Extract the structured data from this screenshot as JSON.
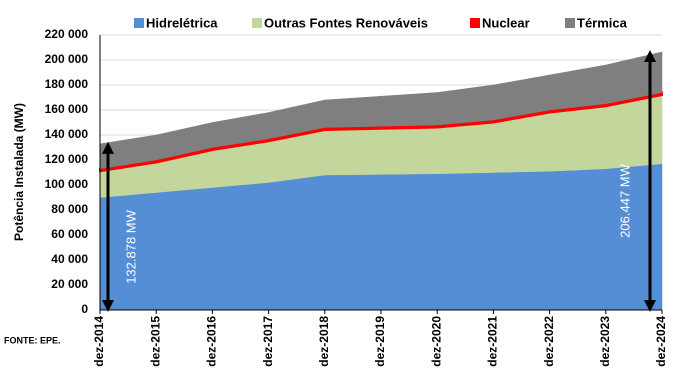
{
  "chart_data": {
    "type": "stacked-area",
    "y_label": "Potência Instalada (MW)",
    "source": "FONTE:  EPE.",
    "categories": [
      "dez-2014",
      "dez-2015",
      "dez-2016",
      "dez-2017",
      "dez-2018",
      "dez-2019",
      "dez-2020",
      "dez-2021",
      "dez-2022",
      "dez-2023",
      "dez-2024"
    ],
    "series": [
      {
        "name": "Hidrelétrica",
        "color": "#558ed5",
        "values": [
          90000,
          94000,
          98000,
          102000,
          108000,
          108500,
          109000,
          110000,
          111000,
          113000,
          117000
        ]
      },
      {
        "name": "Outras Fontes Renováveis",
        "color": "#c3d69b",
        "values": [
          21000,
          24000,
          30000,
          33000,
          36000,
          36500,
          37000,
          40000,
          47000,
          50000,
          55000
        ]
      },
      {
        "name": "Nuclear",
        "color": "#ff0000",
        "values": [
          1990,
          1990,
          1990,
          1990,
          1990,
          1990,
          1990,
          1990,
          1990,
          1990,
          1990
        ]
      },
      {
        "name": "Térmica",
        "color": "#7f7f7f",
        "values": [
          19888,
          20010,
          20010,
          21010,
          22010,
          24010,
          26010,
          28010,
          28010,
          31010,
          32457
        ]
      }
    ],
    "annotations": [
      "132.878 MW",
      "206.447 MW"
    ],
    "ylim": [
      0,
      220000
    ],
    "yticks": [
      {
        "value": 0,
        "label": "0"
      },
      {
        "value": 20000,
        "label": "20 000"
      },
      {
        "value": 40000,
        "label": "40 000"
      },
      {
        "value": 60000,
        "label": "60 000"
      },
      {
        "value": 80000,
        "label": "80 000"
      },
      {
        "value": 100000,
        "label": "100 000"
      },
      {
        "value": 120000,
        "label": "120 000"
      },
      {
        "value": 140000,
        "label": "140 000"
      },
      {
        "value": 160000,
        "label": "160 000"
      },
      {
        "value": 180000,
        "label": "180 000"
      },
      {
        "value": 200000,
        "label": "200 000"
      },
      {
        "value": 220000,
        "label": "220 000"
      }
    ],
    "grid": true
  }
}
